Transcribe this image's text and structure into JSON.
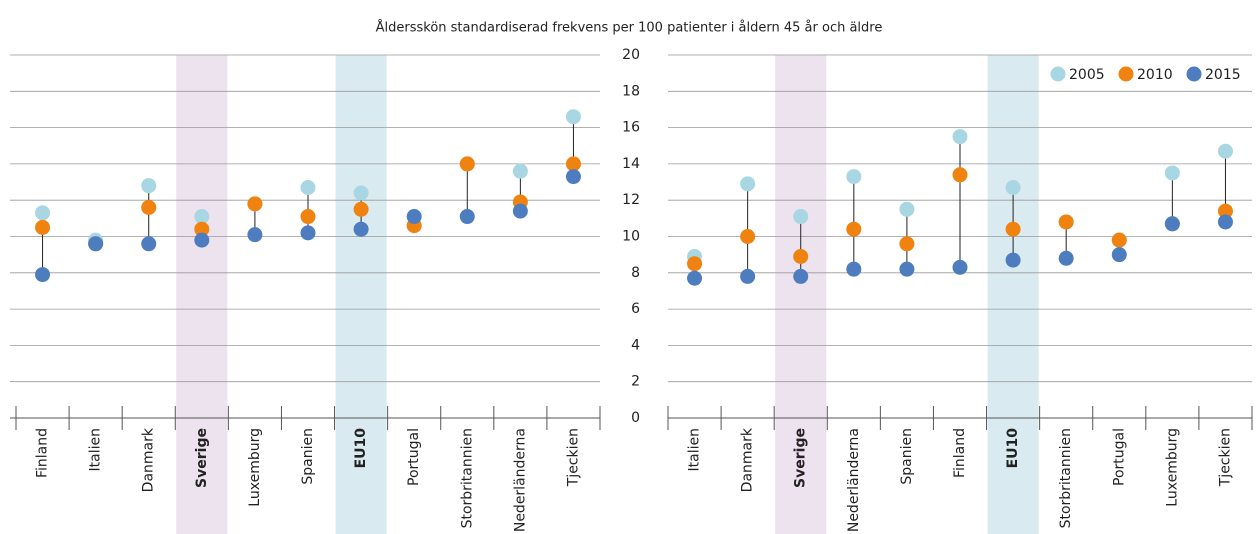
{
  "chart_data": [
    {
      "type": "dumbbell",
      "title": "Åldersskön standardiserad frekvens per 100 patienter i åldern 45 år och äldre",
      "categories": [
        "Finland",
        "Italien",
        "Danmark",
        "Sverige",
        "Luxemburg",
        "Spanien",
        "EU10",
        "Portugal",
        "Storbritannien",
        "Nederländerna",
        "Tjeckien"
      ],
      "highlight_colors": [
        null,
        null,
        null,
        "#ede3ee",
        null,
        null,
        "#d9ebf1",
        null,
        null,
        null,
        null
      ],
      "bold": [
        false,
        false,
        false,
        true,
        false,
        false,
        true,
        false,
        false,
        false,
        false
      ],
      "series": [
        {
          "color": "#a9d6e3",
          "values": [
            11.3,
            9.8,
            12.8,
            11.1,
            11.8,
            12.7,
            12.4,
            10.6,
            14.0,
            13.6,
            16.6
          ]
        },
        {
          "color": "#f0820f",
          "values": [
            10.5,
            9.6,
            11.6,
            10.4,
            11.8,
            11.1,
            11.5,
            10.6,
            14.0,
            11.9,
            14.0
          ]
        },
        {
          "color": "#4d7dbf",
          "values": [
            7.9,
            9.6,
            9.6,
            9.8,
            10.1,
            10.2,
            10.4,
            11.1,
            11.1,
            11.4,
            13.3
          ]
        }
      ],
      "ylim": [
        0,
        20
      ],
      "yticks": [
        0,
        2,
        4,
        6,
        8,
        10,
        12,
        14,
        16,
        18,
        20
      ],
      "grid": true
    },
    {
      "type": "dumbbell",
      "categories": [
        "Italien",
        "Danmark",
        "Sverige",
        "Nederländerna",
        "Spanien",
        "Finland",
        "EU10",
        "Storbritannien",
        "Portugal",
        "Luxemburg",
        "Tjeckien"
      ],
      "highlight_colors": [
        null,
        null,
        "#ede3ee",
        null,
        null,
        null,
        "#d9ebf1",
        null,
        null,
        null,
        null
      ],
      "bold": [
        false,
        false,
        true,
        false,
        false,
        false,
        true,
        false,
        false,
        false,
        false
      ],
      "series": [
        {
          "name": "2005",
          "color": "#a9d6e3",
          "values": [
            8.9,
            12.9,
            11.1,
            13.3,
            11.5,
            15.5,
            12.7,
            10.8,
            9.8,
            13.5,
            14.7
          ]
        },
        {
          "name": "2010",
          "color": "#f0820f",
          "values": [
            8.5,
            10.0,
            8.9,
            10.4,
            9.6,
            13.4,
            10.4,
            10.8,
            9.8,
            10.7,
            11.4
          ]
        },
        {
          "name": "2015",
          "color": "#4d7dbf",
          "values": [
            7.7,
            7.8,
            7.8,
            8.2,
            8.2,
            8.3,
            8.7,
            8.8,
            9.0,
            10.7,
            10.8
          ]
        }
      ],
      "ylim": [
        0,
        20
      ],
      "yticks": [
        0,
        2,
        4,
        6,
        8,
        10,
        12,
        14,
        16,
        18,
        20
      ],
      "grid": true,
      "legend": "top-right"
    }
  ]
}
